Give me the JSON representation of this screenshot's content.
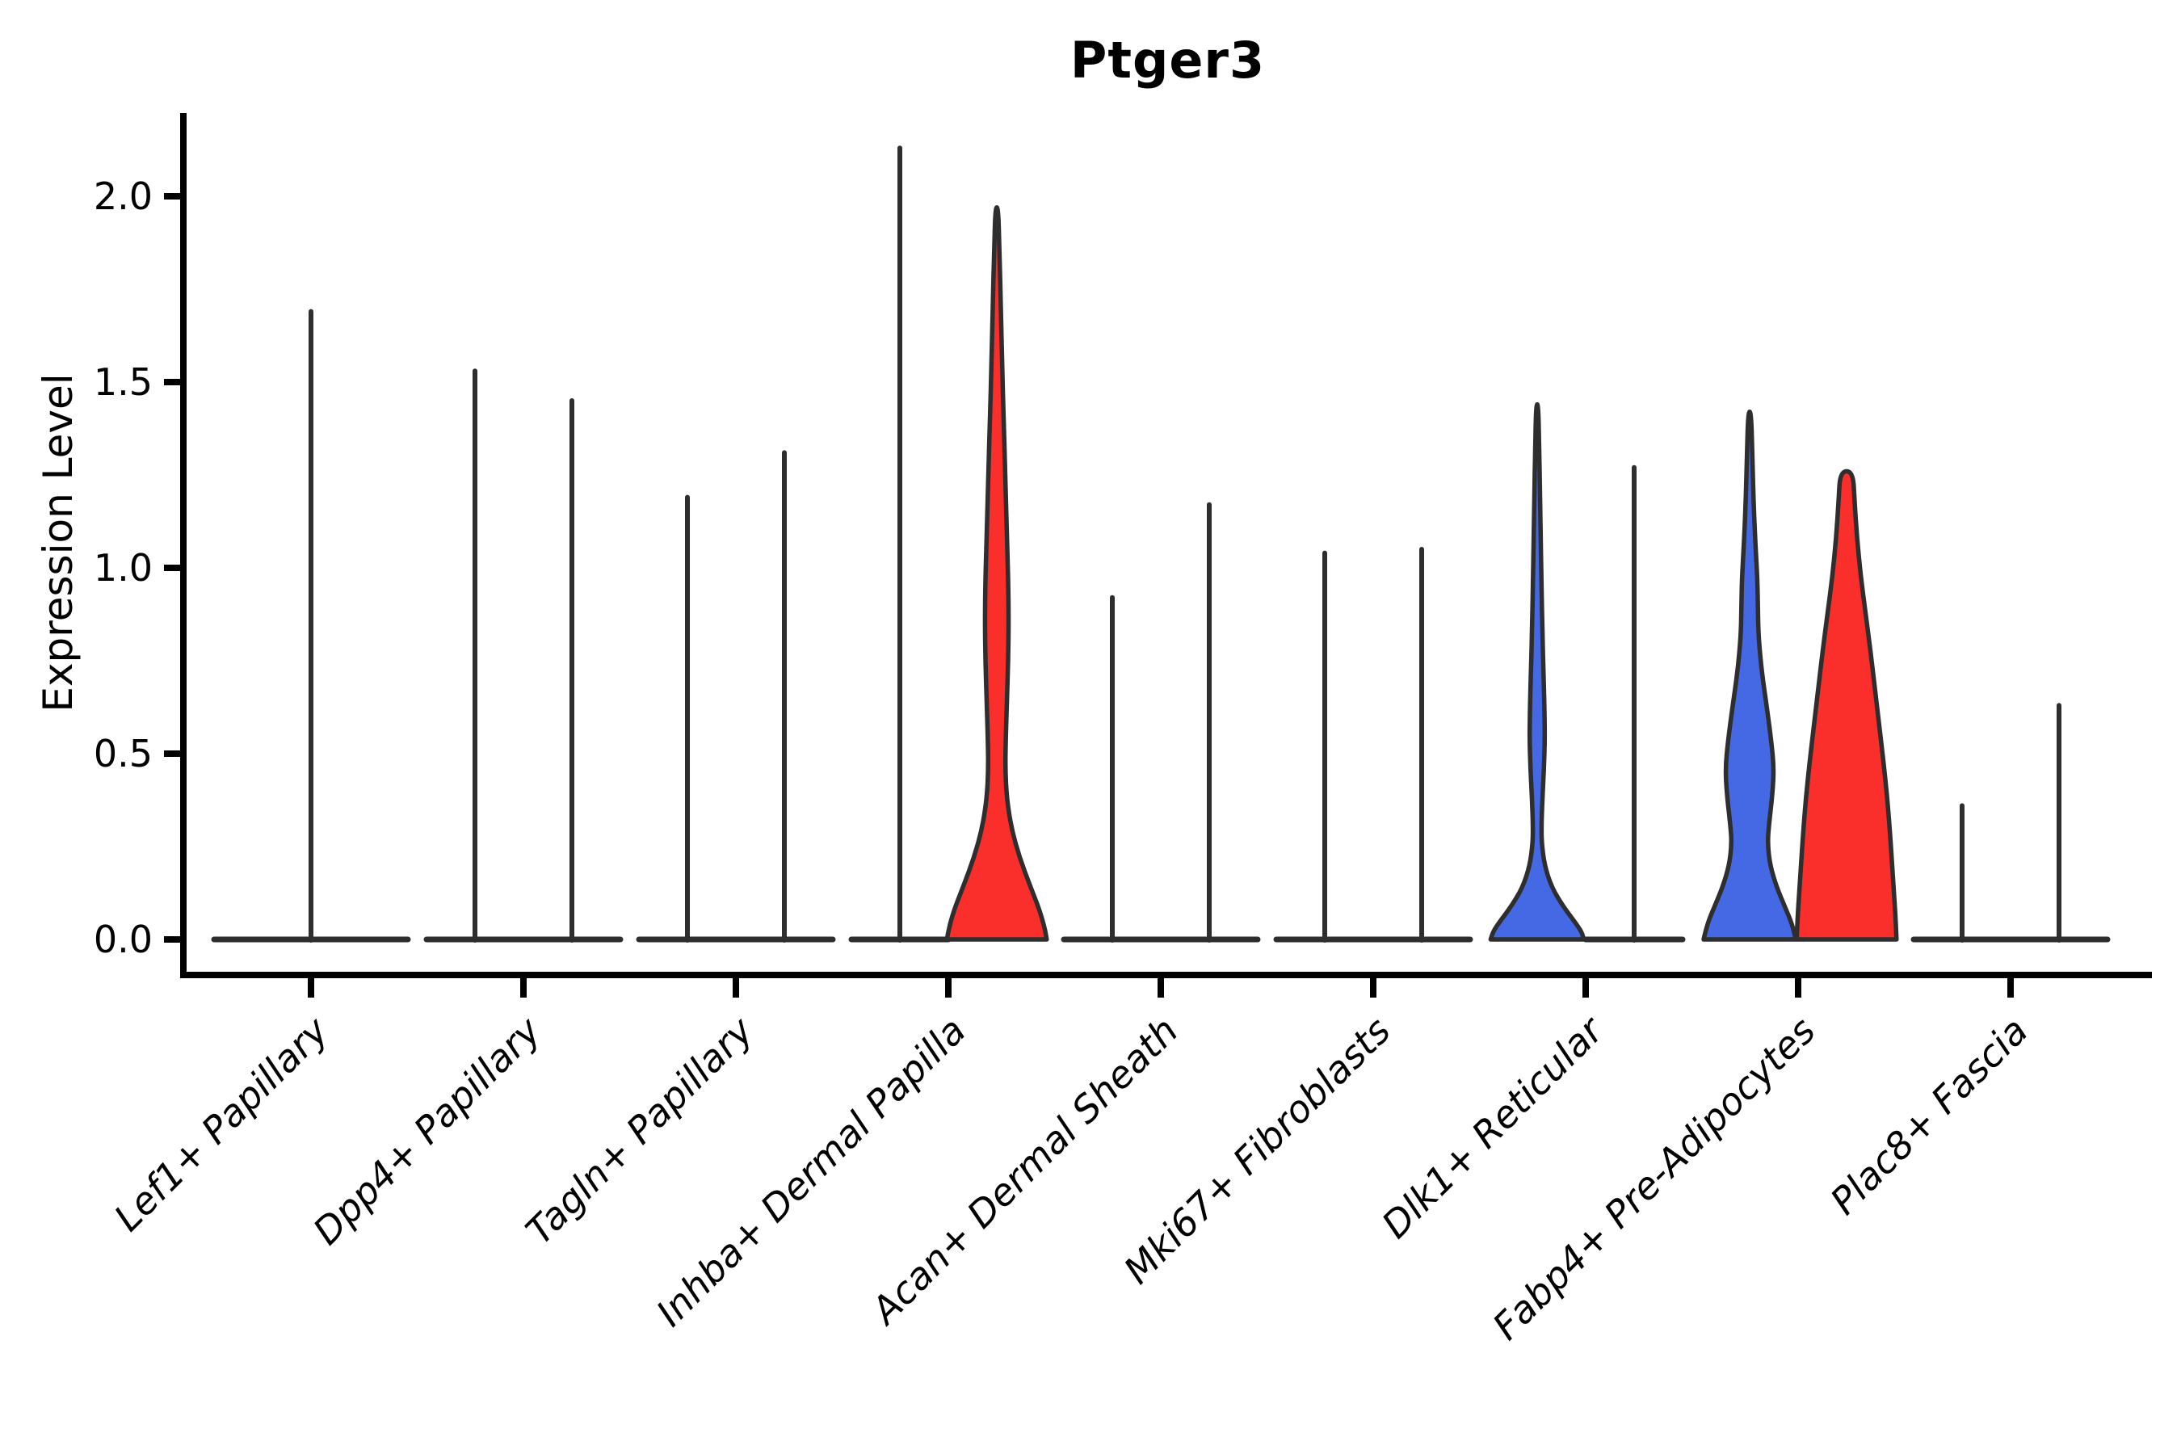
{
  "chart_data": {
    "type": "violin",
    "title": "Ptger3",
    "ylabel": "Expression Level",
    "xlabel": "",
    "ylim": [
      -0.1,
      2.25
    ],
    "grid": false,
    "legend_position": "none",
    "yticks": [
      {
        "label": "0.0",
        "value": 0.0
      },
      {
        "label": "0.5",
        "value": 0.5
      },
      {
        "label": "1.0",
        "value": 1.0
      },
      {
        "label": "1.5",
        "value": 1.5
      },
      {
        "label": "2.0",
        "value": 2.0
      }
    ],
    "categories": [
      "Lef1+ Papillary",
      "Dpp4+ Papillary",
      "Tagln+ Papillary",
      "Inhba+ Dermal Papilla",
      "Acan+ Dermal Sheath",
      "Mki67+ Fibroblasts",
      "Dlk1+ Reticular",
      "Fabp4+ Pre-Adipocytes",
      "Plac8+ Fascia"
    ],
    "colors": {
      "blue": "#4569E5",
      "red": "#FA2E2A",
      "outline": "#2E2E2E",
      "axis": "#000000"
    },
    "groups": [
      {
        "category": "Lef1+ Papillary",
        "violins": [
          {
            "side": "center",
            "style": "line",
            "fill": null,
            "max": 1.69,
            "width_scale": 2.0
          }
        ]
      },
      {
        "category": "Dpp4+ Papillary",
        "violins": [
          {
            "side": "left",
            "style": "line",
            "fill": null,
            "max": 1.53,
            "width_scale": 1.0
          },
          {
            "side": "right",
            "style": "line",
            "fill": null,
            "max": 1.45,
            "width_scale": 1.0
          }
        ]
      },
      {
        "category": "Tagln+ Papillary",
        "violins": [
          {
            "side": "left",
            "style": "line",
            "fill": null,
            "max": 1.19,
            "width_scale": 1.0
          },
          {
            "side": "right",
            "style": "line",
            "fill": null,
            "max": 1.31,
            "width_scale": 1.0
          }
        ]
      },
      {
        "category": "Inhba+ Dermal Papilla",
        "violins": [
          {
            "side": "left",
            "style": "line",
            "fill": null,
            "max": 2.13,
            "width_scale": 1.0
          },
          {
            "side": "right",
            "style": "filled",
            "fill": "red",
            "max": 1.97,
            "width_scale": 1.0,
            "profile": [
              [
                1.97,
                0.03
              ],
              [
                1.85,
                0.055
              ],
              [
                1.7,
                0.085
              ],
              [
                1.55,
                0.11
              ],
              [
                1.4,
                0.14
              ],
              [
                1.25,
                0.175
              ],
              [
                1.1,
                0.205
              ],
              [
                0.97,
                0.235
              ],
              [
                0.86,
                0.245
              ],
              [
                0.75,
                0.235
              ],
              [
                0.64,
                0.21
              ],
              [
                0.54,
                0.185
              ],
              [
                0.46,
                0.175
              ],
              [
                0.38,
                0.205
              ],
              [
                0.3,
                0.3
              ],
              [
                0.22,
                0.47
              ],
              [
                0.14,
                0.7
              ],
              [
                0.08,
                0.88
              ],
              [
                0.03,
                0.99
              ],
              [
                0.0,
                1.03
              ]
            ]
          }
        ]
      },
      {
        "category": "Acan+ Dermal Sheath",
        "violins": [
          {
            "side": "left",
            "style": "line",
            "fill": null,
            "max": 0.92,
            "width_scale": 1.0
          },
          {
            "side": "right",
            "style": "line",
            "fill": null,
            "max": 1.17,
            "width_scale": 1.0
          }
        ]
      },
      {
        "category": "Mki67+ Fibroblasts",
        "violins": [
          {
            "side": "left",
            "style": "line",
            "fill": null,
            "max": 1.04,
            "width_scale": 1.0
          },
          {
            "side": "right",
            "style": "line",
            "fill": null,
            "max": 1.05,
            "width_scale": 1.0
          }
        ]
      },
      {
        "category": "Dlk1+ Reticular",
        "violins": [
          {
            "side": "left",
            "style": "filled",
            "fill": "blue",
            "max": 1.44,
            "width_scale": 1.0,
            "profile": [
              [
                1.44,
                0.022
              ],
              [
                1.32,
                0.042
              ],
              [
                1.2,
                0.058
              ],
              [
                1.08,
                0.072
              ],
              [
                0.96,
                0.088
              ],
              [
                0.84,
                0.105
              ],
              [
                0.72,
                0.13
              ],
              [
                0.62,
                0.15
              ],
              [
                0.54,
                0.158
              ],
              [
                0.46,
                0.14
              ],
              [
                0.38,
                0.108
              ],
              [
                0.31,
                0.088
              ],
              [
                0.26,
                0.092
              ],
              [
                0.2,
                0.15
              ],
              [
                0.14,
                0.3
              ],
              [
                0.09,
                0.53
              ],
              [
                0.05,
                0.76
              ],
              [
                0.02,
                0.92
              ],
              [
                0.0,
                0.96
              ]
            ]
          },
          {
            "side": "right",
            "style": "line",
            "fill": null,
            "max": 1.27,
            "width_scale": 1.0
          }
        ]
      },
      {
        "category": "Fabp4+ Pre-Adipocytes",
        "violins": [
          {
            "side": "left",
            "style": "filled",
            "fill": "blue",
            "max": 1.42,
            "width_scale": 1.0,
            "profile": [
              [
                1.42,
                0.03
              ],
              [
                1.3,
                0.055
              ],
              [
                1.18,
                0.08
              ],
              [
                1.06,
                0.12
              ],
              [
                0.97,
                0.16
              ],
              [
                0.89,
                0.17
              ],
              [
                0.81,
                0.185
              ],
              [
                0.72,
                0.25
              ],
              [
                0.62,
                0.36
              ],
              [
                0.53,
                0.45
              ],
              [
                0.46,
                0.5
              ],
              [
                0.39,
                0.47
              ],
              [
                0.31,
                0.4
              ],
              [
                0.26,
                0.37
              ],
              [
                0.2,
                0.42
              ],
              [
                0.14,
                0.56
              ],
              [
                0.09,
                0.72
              ],
              [
                0.04,
                0.88
              ],
              [
                0.0,
                0.95
              ]
            ]
          },
          {
            "side": "right",
            "style": "filled",
            "fill": "red",
            "max": 1.26,
            "width_scale": 1.0,
            "profile": [
              [
                1.26,
                0.13
              ],
              [
                1.18,
                0.165
              ],
              [
                1.08,
                0.215
              ],
              [
                0.98,
                0.29
              ],
              [
                0.88,
                0.39
              ],
              [
                0.78,
                0.49
              ],
              [
                0.68,
                0.58
              ],
              [
                0.58,
                0.67
              ],
              [
                0.48,
                0.76
              ],
              [
                0.38,
                0.84
              ],
              [
                0.28,
                0.9
              ],
              [
                0.2,
                0.94
              ],
              [
                0.12,
                0.98
              ],
              [
                0.06,
                1.01
              ],
              [
                0.0,
                1.03
              ]
            ]
          }
        ]
      },
      {
        "category": "Plac8+ Fascia",
        "violins": [
          {
            "side": "left",
            "style": "line",
            "fill": null,
            "max": 0.36,
            "width_scale": 1.0
          },
          {
            "side": "right",
            "style": "line",
            "fill": null,
            "max": 0.63,
            "width_scale": 1.0
          }
        ]
      }
    ]
  }
}
